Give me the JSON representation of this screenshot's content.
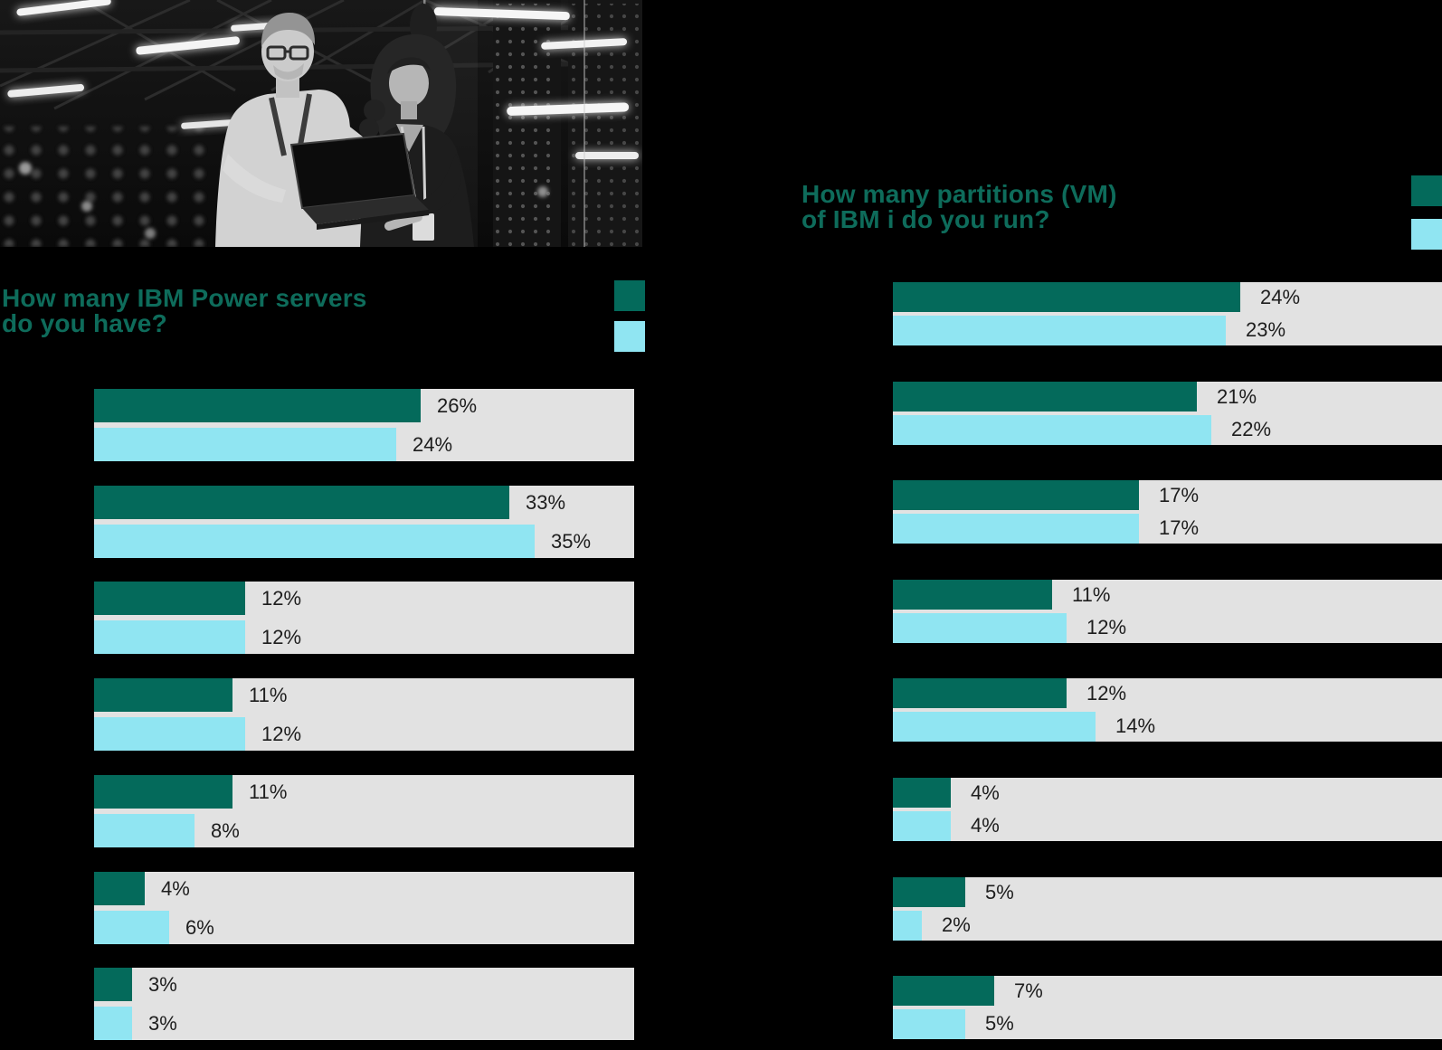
{
  "colors": {
    "background": "#000000",
    "series1": "#046A5B",
    "series2": "#90E5F2",
    "track": "#E2E2E2",
    "title": "#0E6C5B",
    "value_label": "#1D1D1D"
  },
  "photo": {
    "description": "Black-and-white photo of two IT professionals reviewing a laptop in a data center"
  },
  "chart_data": [
    {
      "type": "bar",
      "orientation": "horizontal",
      "title": "How many IBM Power servers do you have?",
      "title_lines": [
        "How many IBM Power servers",
        "do you have?"
      ],
      "unit": "%",
      "value_labels": true,
      "grid": false,
      "legend_position": "top-right",
      "legend": [
        {
          "series": "series1",
          "color": "#046A5B",
          "label": ""
        },
        {
          "series": "series2",
          "color": "#90E5F2",
          "label": ""
        }
      ],
      "xlim": [
        0,
        43
      ],
      "series": [
        {
          "name": "series1",
          "values": [
            26,
            33,
            12,
            11,
            11,
            4,
            3
          ]
        },
        {
          "name": "series2",
          "values": [
            24,
            35,
            12,
            12,
            8,
            6,
            3
          ]
        }
      ]
    },
    {
      "type": "bar",
      "orientation": "horizontal",
      "title": "How many partitions (VM) of IBM i do you run?",
      "title_lines": [
        "How many partitions (VM)",
        "of IBM i do you run?"
      ],
      "unit": "%",
      "value_labels": true,
      "grid": false,
      "legend_position": "top-right",
      "legend": [
        {
          "series": "series1",
          "color": "#046A5B",
          "label": ""
        },
        {
          "series": "series2",
          "color": "#90E5F2",
          "label": ""
        }
      ],
      "xlim": [
        0,
        38
      ],
      "series": [
        {
          "name": "series1",
          "values": [
            24,
            21,
            17,
            11,
            12,
            4,
            5,
            7
          ]
        },
        {
          "name": "series2",
          "values": [
            23,
            22,
            17,
            12,
            14,
            4,
            2,
            5
          ]
        }
      ]
    }
  ]
}
